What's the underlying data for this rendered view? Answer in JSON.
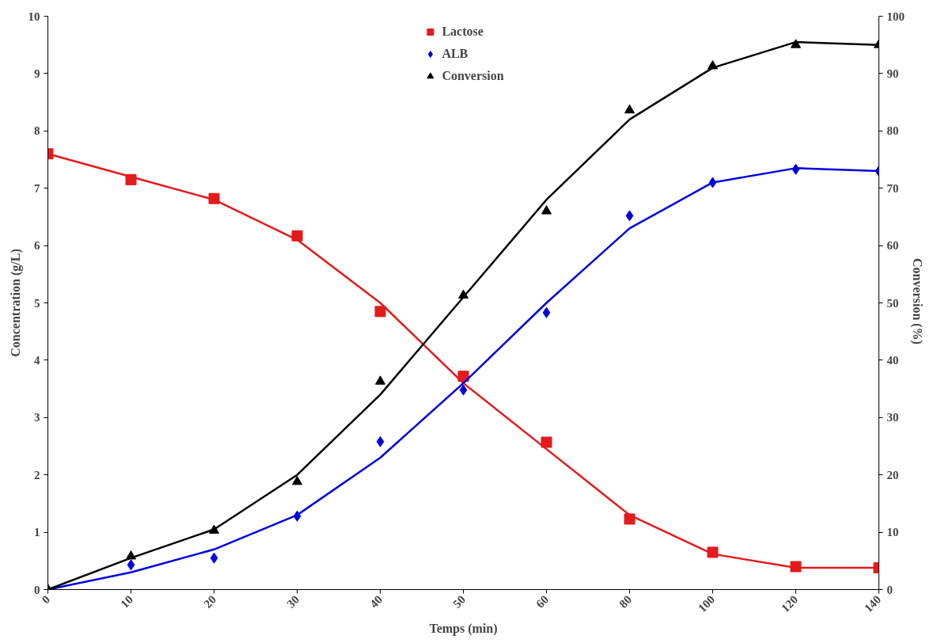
{
  "chart_data": {
    "type": "scatter",
    "xlabel": "Temps (min)",
    "ylabel": "Concentration (g/L)",
    "y2label": "Conversion  (%)",
    "categories": [
      "0",
      "10",
      "20",
      "30",
      "40",
      "50",
      "60",
      "80",
      "100",
      "120",
      "140"
    ],
    "ylim": [
      0,
      10
    ],
    "yticks": [
      0,
      1,
      2,
      3,
      4,
      5,
      6,
      7,
      8,
      9,
      10
    ],
    "y2lim": [
      0,
      100
    ],
    "y2ticks": [
      0,
      10,
      20,
      30,
      40,
      50,
      60,
      70,
      80,
      90,
      100
    ],
    "grid": false,
    "legend": "top",
    "line_style": "solid",
    "series": [
      {
        "name": "Lactose",
        "marker": "square",
        "color": "#e41a1c",
        "values": [
          7.6,
          7.15,
          6.82,
          6.17,
          4.85,
          3.72,
          2.57,
          1.23,
          0.65,
          0.4,
          0.38
        ]
      },
      {
        "name": "ALB",
        "marker": "diamond",
        "color": "#0000e0",
        "values": [
          0,
          0.43,
          0.55,
          1.28,
          2.58,
          3.48,
          4.83,
          6.52,
          7.1,
          7.33,
          7.3
        ]
      },
      {
        "name": "Conversion",
        "marker": "triangle",
        "color": "#000000",
        "axis": "y2",
        "values": [
          0,
          5.8,
          10.3,
          18.8,
          36.3,
          51.3,
          66,
          83.6,
          91.3,
          95,
          95
        ]
      },
      {
        "type": "line",
        "color": "#e41a1c",
        "values": [
          7.6,
          7.2,
          6.8,
          6.1,
          5.0,
          3.6,
          2.45,
          1.3,
          0.62,
          0.38,
          0.38
        ]
      },
      {
        "type": "line",
        "color": "#0000e0",
        "values": [
          0,
          0.3,
          0.7,
          1.3,
          2.3,
          3.6,
          5.0,
          6.3,
          7.1,
          7.35,
          7.3
        ]
      },
      {
        "type": "line",
        "color": "#000000",
        "axis": "y2",
        "values": [
          0,
          5.5,
          10.5,
          20,
          34,
          51,
          68,
          82,
          91,
          95.5,
          95
        ]
      }
    ]
  }
}
